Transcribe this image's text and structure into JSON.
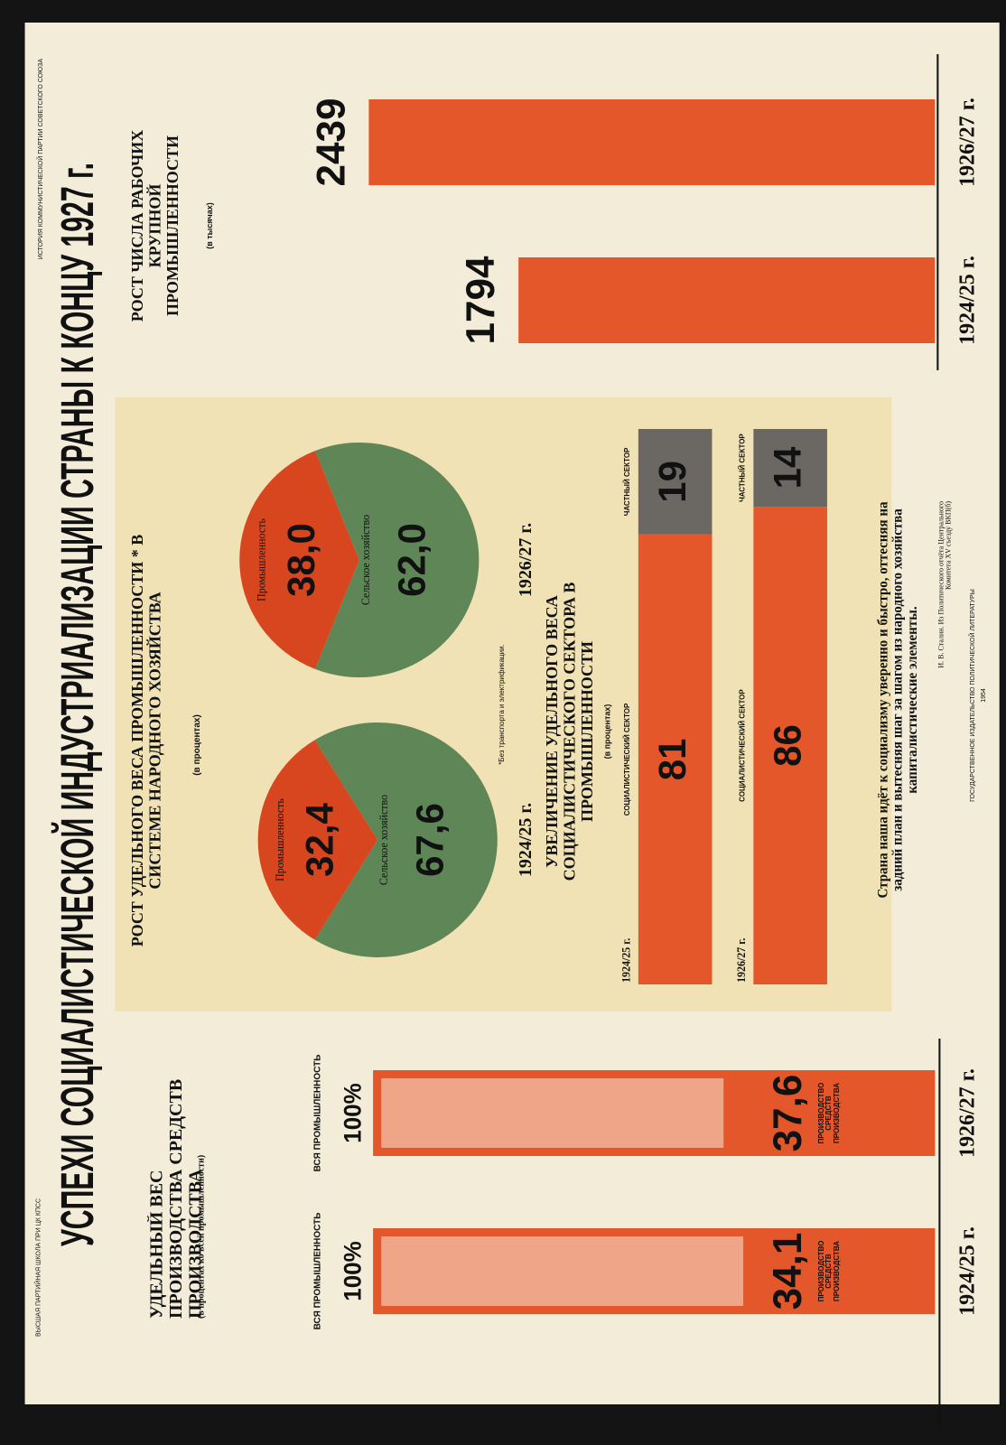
{
  "header": {
    "institution": "ВЫСШАЯ ПАРТИЙНАЯ ШКОЛА ПРИ ЦК КПСС",
    "series": "ИСТОРИЯ КОММУНИСТИЧЕСКОЙ ПАРТИИ СОВЕТСКОГО СОЮЗА",
    "title": "УСПЕХИ СОЦИАЛИСТИЧЕСКОЙ ИНДУСТРИАЛИЗАЦИИ СТРАНЫ К КОНЦУ 1927 г."
  },
  "chart_data": [
    {
      "type": "overlay",
      "title": "УДЕЛЬНЫЙ ВЕС ПРОИЗВОДСТВА СРЕДСТВ ПРОИЗВОДСТВА",
      "subtitle": "(в процентах ко всей промышленности)",
      "categories": [
        "1924/25 г.",
        "1926/27 г."
      ],
      "series": [
        {
          "name": "ВСЯ ПРОМЫШЛЕННОСТЬ",
          "color": "#e4572a",
          "values": [
            100,
            100
          ],
          "value_labels": [
            "100%",
            "100%"
          ]
        },
        {
          "name": "ПРОИЗВОДСТВО СРЕДСТВ ПРОИЗВОДСТВА",
          "color": "#e4572a",
          "values": [
            34.1,
            37.6
          ],
          "value_labels": [
            "34,1",
            "37,6"
          ]
        }
      ],
      "ylim": [
        0,
        100
      ]
    },
    {
      "type": "pie",
      "title": "РОСТ УДЕЛЬНОГО ВЕСА ПРОМЫШЛЕННОСТИ * В СИСТЕМЕ НАРОДНОГО ХОЗЯЙСТВА",
      "subtitle": "(в процентах)",
      "note": "*Без транспорта и электрификации.",
      "categories": [
        "Промышленность",
        "Сельское хозяйство"
      ],
      "colors": [
        "#d8461f",
        "#5e8656"
      ],
      "pies": [
        {
          "label": "1924/25 г.",
          "values": [
            32.4,
            67.6
          ],
          "value_labels": [
            "32,4",
            "67,6"
          ]
        },
        {
          "label": "1926/27 г.",
          "values": [
            38.0,
            62.0
          ],
          "value_labels": [
            "38,0",
            "62,0"
          ]
        }
      ]
    },
    {
      "type": "stacked",
      "title": "УВЕЛИЧЕНИЕ УДЕЛЬНОГО ВЕСА СОЦИАЛИСТИЧЕСКОГО СЕКТОРА В ПРОМЫШЛЕННОСТИ",
      "subtitle": "(в процентах)",
      "categories": [
        "1924/25 г.",
        "1926/27 г."
      ],
      "series": [
        {
          "name": "СОЦИАЛИСТИЧЕСКИЙ СЕКТОР",
          "color": "#e4572a",
          "values": [
            81,
            86
          ]
        },
        {
          "name": "ЧАСТНЫЙ СЕКТОР",
          "color": "#6b6864",
          "values": [
            19,
            14
          ]
        }
      ],
      "xlim": [
        0,
        100
      ]
    },
    {
      "type": "bar",
      "title": "РОСТ ЧИСЛА РАБОЧИХ КРУПНОЙ ПРОМЫШЛЕННОСТИ",
      "subtitle": "(в тысячах)",
      "categories": [
        "1924/25 г.",
        "1926/27 г."
      ],
      "values": [
        1794,
        2439
      ],
      "color": "#e4572a",
      "ylim": [
        0,
        2500
      ]
    }
  ],
  "quote": {
    "text": "Страна наша идёт к социализму уверенно и быстро, оттесняя на задний план и вытесняя шаг за шагом из народного хозяйства капиталистические элементы.",
    "attribution": "И. В. Сталин. Из Политического отчёта Центрального Комитета XV съезду ВКП(б)"
  },
  "publisher": {
    "name": "ГОСУДАРСТВЕННОЕ ИЗДАТЕЛЬСТВО ПОЛИТИЧЕСКОЙ ЛИТЕРАТУРЫ",
    "year": "1954"
  }
}
